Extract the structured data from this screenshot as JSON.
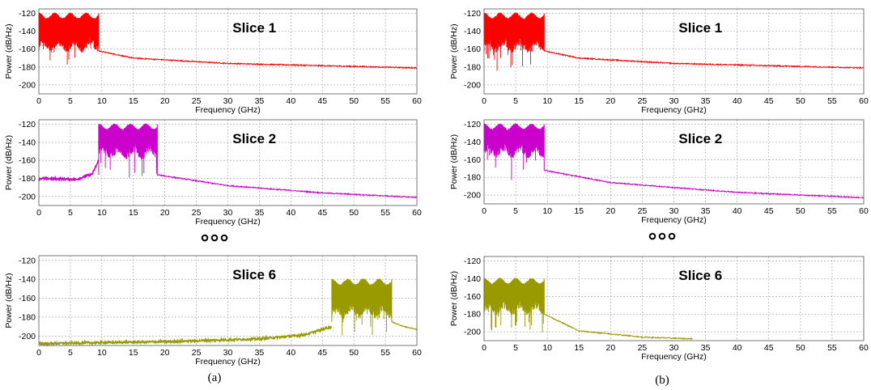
{
  "captions": [
    "(a)",
    "(b)"
  ],
  "ellipsis_marker": "ooo",
  "chart_data": [
    {
      "type": "line",
      "group": "(a)",
      "title": "Slice 1",
      "xlabel": "Frequency (GHz)",
      "ylabel": "Power (dB/Hz)",
      "xlim": [
        0,
        60
      ],
      "ylim": [
        -210,
        -115
      ],
      "xticks": [
        0,
        5,
        10,
        15,
        20,
        25,
        30,
        35,
        40,
        45,
        50,
        55,
        60
      ],
      "yticks": [
        -120,
        -140,
        -160,
        -180,
        -200
      ],
      "grid": true,
      "color": "#ff0000",
      "series": [
        {
          "band": [
            0,
            9.5
          ],
          "band_top": -120,
          "band_bottom": -150,
          "ripple_period": 2.5,
          "floor": [
            [
              9.5,
              -162
            ],
            [
              15,
              -170
            ],
            [
              30,
              -176
            ],
            [
              60,
              -181
            ]
          ],
          "left_floor": null
        }
      ]
    },
    {
      "type": "line",
      "group": "(a)",
      "title": "Slice 2",
      "xlabel": "Frequency (GHz)",
      "ylabel": "Power (dB/Hz)",
      "xlim": [
        0,
        60
      ],
      "ylim": [
        -210,
        -115
      ],
      "xticks": [
        0,
        5,
        10,
        15,
        20,
        25,
        30,
        35,
        40,
        45,
        50,
        55,
        60
      ],
      "yticks": [
        -120,
        -140,
        -160,
        -180,
        -200
      ],
      "grid": true,
      "color": "#cc00cc",
      "series": [
        {
          "band": [
            9.5,
            18.8
          ],
          "band_top": -120,
          "band_bottom": -145,
          "ripple_period": 2.5,
          "floor": [
            [
              18.8,
              -176
            ],
            [
              30,
              -188
            ],
            [
              45,
              -196
            ],
            [
              60,
              -201
            ]
          ],
          "left_floor": [
            [
              0,
              -180
            ],
            [
              6,
              -181
            ],
            [
              8.5,
              -175
            ],
            [
              9.5,
              -160
            ]
          ]
        }
      ]
    },
    {
      "type": "line",
      "group": "(a)",
      "title": "Slice 6",
      "xlabel": "Frequency (GHz)",
      "ylabel": "Power (dB/Hz)",
      "xlim": [
        0,
        60
      ],
      "ylim": [
        -210,
        -115
      ],
      "xticks": [
        0,
        5,
        10,
        15,
        20,
        25,
        30,
        35,
        40,
        45,
        50,
        55,
        60
      ],
      "yticks": [
        -120,
        -140,
        -160,
        -180,
        -200
      ],
      "grid": true,
      "color": "#999900",
      "series": [
        {
          "band": [
            46.5,
            56
          ],
          "band_top": -140,
          "band_bottom": -168,
          "ripple_period": 2.5,
          "floor": [
            [
              56,
              -185
            ],
            [
              58,
              -190
            ],
            [
              60,
              -193
            ]
          ],
          "left_floor": [
            [
              0,
              -208
            ],
            [
              20,
              -206
            ],
            [
              35,
              -203
            ],
            [
              42,
              -199
            ],
            [
              46.5,
              -190
            ]
          ]
        }
      ]
    },
    {
      "type": "line",
      "group": "(b)",
      "title": "Slice 1",
      "xlabel": "Frequency (GHz)",
      "ylabel": "Power (dB/Hz)",
      "xlim": [
        0,
        60
      ],
      "ylim": [
        -210,
        -115
      ],
      "xticks": [
        0,
        5,
        10,
        15,
        20,
        25,
        30,
        35,
        40,
        45,
        50,
        55,
        60
      ],
      "yticks": [
        -120,
        -140,
        -160,
        -180,
        -200
      ],
      "grid": true,
      "color": "#ff0000",
      "series": [
        {
          "band": [
            0,
            9.5
          ],
          "band_top": -120,
          "band_bottom": -150,
          "ripple_period": 2.5,
          "floor": [
            [
              9.5,
              -162
            ],
            [
              15,
              -170
            ],
            [
              30,
              -176
            ],
            [
              60,
              -181
            ]
          ],
          "left_floor": null
        }
      ]
    },
    {
      "type": "line",
      "group": "(b)",
      "title": "Slice 2",
      "xlabel": "Frequency (GHz)",
      "ylabel": "Power (dB/Hz)",
      "xlim": [
        0,
        60
      ],
      "ylim": [
        -210,
        -115
      ],
      "xticks": [
        0,
        5,
        10,
        15,
        20,
        25,
        30,
        35,
        40,
        45,
        50,
        55,
        60
      ],
      "yticks": [
        -120,
        -140,
        -160,
        -180,
        -200
      ],
      "grid": true,
      "color": "#cc00cc",
      "series": [
        {
          "band": [
            0,
            9.5
          ],
          "band_top": -120,
          "band_bottom": -145,
          "ripple_period": 2.5,
          "floor": [
            [
              9.5,
              -172
            ],
            [
              20,
              -186
            ],
            [
              40,
              -197
            ],
            [
              60,
              -203
            ]
          ],
          "left_floor": null
        }
      ]
    },
    {
      "type": "line",
      "group": "(b)",
      "title": "Slice 6",
      "xlabel": "Frequency (GHz)",
      "ylabel": "Power (dB/Hz)",
      "xlim": [
        0,
        60
      ],
      "ylim": [
        -210,
        -115
      ],
      "xticks": [
        0,
        5,
        10,
        15,
        20,
        25,
        30,
        35,
        40,
        45,
        50,
        55,
        60
      ],
      "yticks": [
        -120,
        -140,
        -160,
        -180,
        -200
      ],
      "grid": true,
      "color": "#999900",
      "series": [
        {
          "band": [
            0,
            9.5
          ],
          "band_top": -140,
          "band_bottom": -168,
          "ripple_period": 2.5,
          "floor": [
            [
              9.5,
              -180
            ],
            [
              15,
              -199
            ],
            [
              25,
              -206
            ],
            [
              33,
              -208
            ]
          ],
          "left_floor": null
        }
      ]
    }
  ]
}
